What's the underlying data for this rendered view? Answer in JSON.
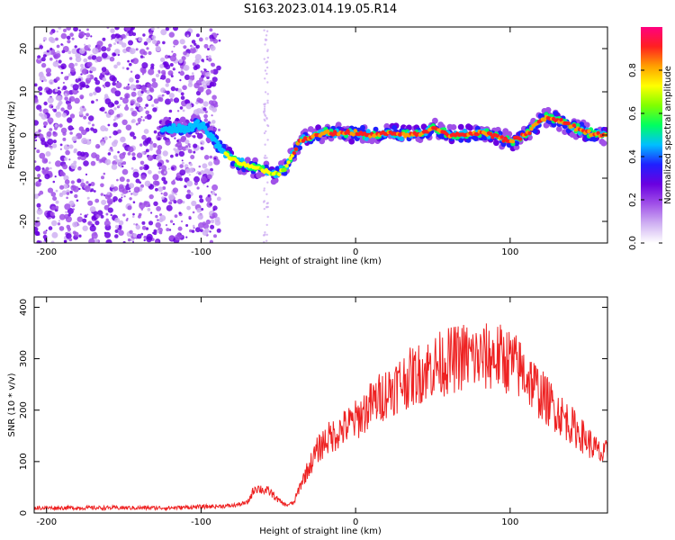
{
  "title": "S163.2023.014.19.05.R14",
  "colors": {
    "snr_line": "#ee2222",
    "axis": "#000000",
    "colormap": [
      "#ffffff",
      "#cfb0f2",
      "#a050e8",
      "#6a00e0",
      "#2020ff",
      "#00bfff",
      "#00ff60",
      "#80ff00",
      "#ffff00",
      "#ffa000",
      "#ff2020",
      "#ff0080"
    ]
  },
  "chart_data": [
    {
      "type": "heatmap",
      "xlabel": "Height of straight line (km)",
      "ylabel": "Frequency (Hz)",
      "xlim": [
        -208,
        163
      ],
      "ylim": [
        -25,
        25
      ],
      "x_ticks": [
        -200,
        -100,
        0,
        100
      ],
      "x_tick_labels": [
        "-200",
        "-100",
        "0",
        "100"
      ],
      "y_ticks": [
        20,
        10,
        0,
        -10,
        -20
      ],
      "y_tick_labels": [
        "20",
        "10",
        "0",
        "-10",
        "-20"
      ],
      "colorbar": {
        "label": "Normalized spectral amplitude",
        "range": [
          0,
          1
        ],
        "ticks": [
          0.0,
          0.2,
          0.4,
          0.6,
          0.8
        ],
        "tick_labels": [
          "0.0",
          "0.2",
          "0.4",
          "0.6",
          "0.8"
        ]
      },
      "ridge": {
        "height_km": [
          -125,
          -110,
          -100,
          -92,
          -85,
          -78,
          -72,
          -66,
          -60,
          -55,
          -50,
          -45,
          -40,
          -35,
          -30,
          -20,
          -10,
          0,
          10,
          20,
          30,
          40,
          50,
          55,
          60,
          70,
          80,
          90,
          95,
          100,
          110,
          120,
          125,
          130,
          140,
          150,
          163
        ],
        "frequency_hz": [
          1.5,
          1.5,
          2.5,
          -1,
          -4,
          -6,
          -7,
          -7.5,
          -8,
          -9,
          -9,
          -7.5,
          -4,
          -1,
          -0.5,
          0.5,
          0.5,
          0.5,
          0,
          0.5,
          0,
          0,
          1.5,
          1,
          0,
          0,
          0.5,
          0,
          -1,
          -1.5,
          0,
          3.5,
          4,
          3.5,
          2,
          0.5,
          0
        ]
      }
    },
    {
      "type": "line",
      "xlabel": "Height of straight line (km)",
      "ylabel": "SNR (10 * v/v)",
      "xlim": [
        -208,
        163
      ],
      "ylim": [
        0,
        420
      ],
      "x_ticks": [
        -200,
        -100,
        0,
        100
      ],
      "x_tick_labels": [
        "-200",
        "-100",
        "0",
        "100"
      ],
      "y_ticks": [
        0,
        100,
        200,
        300,
        400
      ],
      "y_tick_labels": [
        "0",
        "100",
        "200",
        "300",
        "400"
      ],
      "series": [
        {
          "x": [
            -208,
            -180,
            -150,
            -120,
            -100,
            -80,
            -70,
            -65,
            -60,
            -55,
            -50,
            -45,
            -40,
            -35,
            -30,
            -25,
            -20,
            -10,
            0,
            10,
            20,
            30,
            40,
            50,
            60,
            70,
            80,
            90,
            100,
            110,
            120,
            130,
            140,
            150,
            160,
            163
          ],
          "y": [
            10,
            10,
            10,
            10,
            12,
            14,
            20,
            50,
            45,
            40,
            25,
            15,
            20,
            60,
            90,
            120,
            140,
            160,
            180,
            210,
            235,
            255,
            270,
            285,
            295,
            305,
            300,
            305,
            295,
            270,
            230,
            200,
            170,
            140,
            110,
            120
          ]
        }
      ]
    }
  ]
}
